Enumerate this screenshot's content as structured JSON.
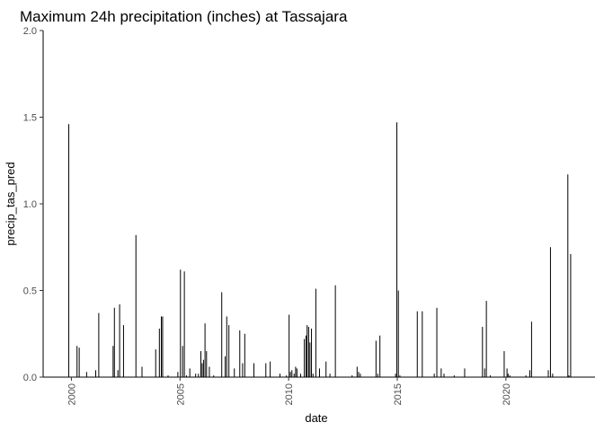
{
  "chart_data": {
    "type": "bar",
    "title": "Maximum 24h precipitation (inches) at Tassajara",
    "xlabel": "date",
    "ylabel": "precip_tas_pred",
    "xlim": [
      1998.7,
      2024.1
    ],
    "ylim": [
      0,
      2.0
    ],
    "x_ticks": [
      {
        "value": 2000,
        "label": "2000"
      },
      {
        "value": 2005,
        "label": "2005"
      },
      {
        "value": 2010,
        "label": "2010"
      },
      {
        "value": 2015,
        "label": "2015"
      },
      {
        "value": 2020,
        "label": "2020"
      }
    ],
    "y_ticks": [
      {
        "value": 0.0,
        "label": "0.0"
      },
      {
        "value": 0.5,
        "label": "0.5"
      },
      {
        "value": 1.0,
        "label": "1.0"
      },
      {
        "value": 1.5,
        "label": "1.5"
      },
      {
        "value": 2.0,
        "label": "2.0"
      }
    ],
    "grid": false,
    "legend": "none",
    "bar_color": "#000000",
    "series": [
      {
        "x": [
          1999.88,
          2000.26,
          2000.36,
          2000.7,
          2001.12,
          2001.26,
          2001.92,
          2001.98,
          2002.14,
          2002.22,
          2002.4,
          2002.97,
          2003.25,
          2003.88,
          2004.05,
          2004.14,
          2004.2,
          2004.45,
          2004.9,
          2005.02,
          2005.12,
          2005.2,
          2005.3,
          2005.45,
          2005.72,
          2005.85,
          2005.96,
          2006.02,
          2006.08,
          2006.15,
          2006.22,
          2006.35,
          2006.55,
          2006.92,
          2007.08,
          2007.15,
          2007.25,
          2007.5,
          2007.75,
          2007.88,
          2007.98,
          2008.4,
          2008.95,
          2009.15,
          2009.6,
          2009.9,
          2010.02,
          2010.08,
          2010.15,
          2010.25,
          2010.32,
          2010.38,
          2010.55,
          2010.72,
          2010.8,
          2010.85,
          2010.92,
          2010.98,
          2011.05,
          2011.12,
          2011.25,
          2011.42,
          2011.72,
          2011.9,
          2012.15,
          2012.92,
          2013.15,
          2013.22,
          2013.3,
          2014.02,
          2014.1,
          2014.2,
          2014.92,
          2014.98,
          2015.05,
          2015.12,
          2015.92,
          2016.15,
          2016.7,
          2016.82,
          2017.02,
          2017.15,
          2017.62,
          2018.1,
          2018.92,
          2019.02,
          2019.1,
          2019.28,
          2019.92,
          2020.05,
          2020.1,
          2020.18,
          2020.92,
          2021.1,
          2021.18,
          2021.95,
          2022.05,
          2022.15,
          2022.85,
          2022.9,
          2022.98
        ],
        "values": [
          1.46,
          0.18,
          0.17,
          0.03,
          0.04,
          0.37,
          0.18,
          0.4,
          0.04,
          0.42,
          0.3,
          0.82,
          0.06,
          0.16,
          0.28,
          0.35,
          0.35,
          0.01,
          0.03,
          0.62,
          0.18,
          0.61,
          0.01,
          0.05,
          0.02,
          0.02,
          0.15,
          0.08,
          0.1,
          0.31,
          0.15,
          0.06,
          0.01,
          0.49,
          0.12,
          0.35,
          0.3,
          0.05,
          0.27,
          0.08,
          0.25,
          0.08,
          0.08,
          0.09,
          0.02,
          0.01,
          0.36,
          0.03,
          0.04,
          0.02,
          0.06,
          0.05,
          0.02,
          0.22,
          0.24,
          0.3,
          0.29,
          0.2,
          0.28,
          0.02,
          0.51,
          0.05,
          0.09,
          0.02,
          0.53,
          0.01,
          0.06,
          0.03,
          0.02,
          0.21,
          0.02,
          0.24,
          0.02,
          1.47,
          0.5,
          0.01,
          0.38,
          0.38,
          0.02,
          0.4,
          0.05,
          0.02,
          0.01,
          0.05,
          0.29,
          0.05,
          0.44,
          0.01,
          0.15,
          0.05,
          0.02,
          0.01,
          0.01,
          0.04,
          0.32,
          0.04,
          0.75,
          0.02,
          1.17,
          0.01,
          0.71
        ]
      }
    ]
  }
}
